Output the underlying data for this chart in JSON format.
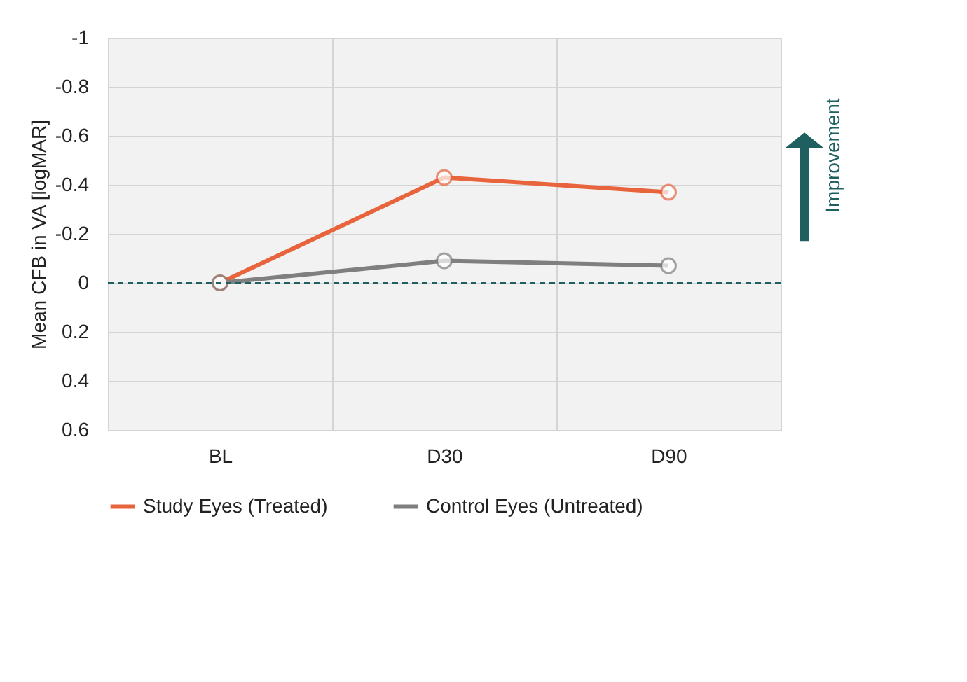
{
  "chart_data": {
    "type": "line",
    "ylabel": "Mean CFB in VA [logMAR]",
    "categories": [
      "BL",
      "D30",
      "D90"
    ],
    "series": [
      {
        "name": "Study Eyes (Treated)",
        "color": "#e8643c",
        "values": [
          0,
          -0.43,
          -0.37
        ]
      },
      {
        "name": "Control Eyes (Untreated)",
        "color": "#7f7f7f",
        "values": [
          0,
          -0.09,
          -0.07
        ]
      }
    ],
    "ylim": [
      0.6,
      -1
    ],
    "yticks": [
      -1,
      -0.8,
      -0.6,
      -0.4,
      -0.2,
      0,
      0.2,
      0.4,
      0.6
    ],
    "ref_lines": [
      {
        "axis": "y",
        "value": 0,
        "color": "#1f5f5f",
        "line_style": "dashed"
      }
    ],
    "annotations": [
      "Improvement"
    ],
    "grid": true,
    "legend": "bottom",
    "marker": "circle",
    "line_style": "solid"
  }
}
